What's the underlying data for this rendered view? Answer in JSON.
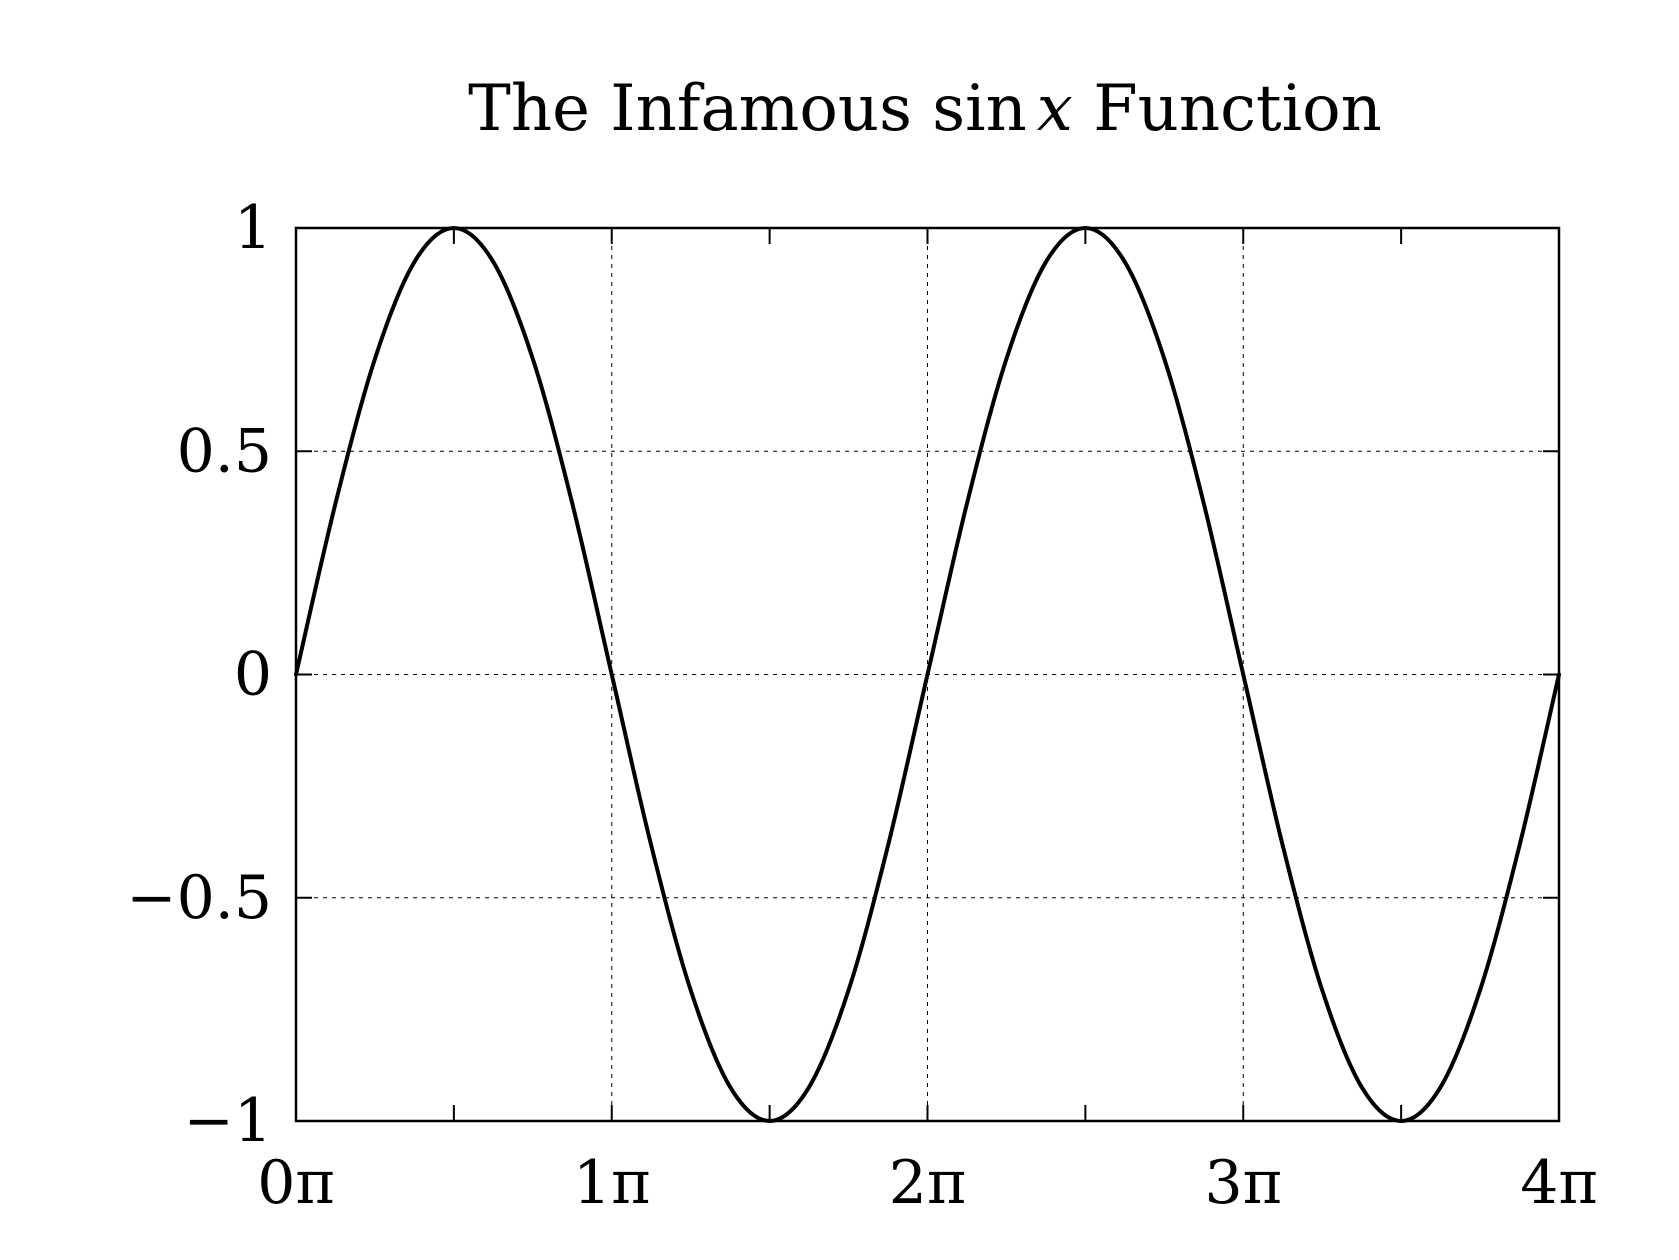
{
  "chart_data": {
    "type": "line",
    "title_parts": {
      "before": "The Infamous ",
      "func": "sin",
      "variable": "x",
      "after": " Function"
    },
    "xlabel": "",
    "ylabel": "",
    "xlim": [
      0,
      4
    ],
    "ylim": [
      -1,
      1
    ],
    "x_unit": "π",
    "grid": true,
    "grid_style": "dashed",
    "line_color": "#000000",
    "x_ticks": [
      {
        "value": 0,
        "label": "0π"
      },
      {
        "value": 1,
        "label": "1π"
      },
      {
        "value": 2,
        "label": "2π"
      },
      {
        "value": 3,
        "label": "3π"
      },
      {
        "value": 4,
        "label": "4π"
      }
    ],
    "x_minor_ticks": [
      0.5,
      1.5,
      2.5,
      3.5
    ],
    "y_ticks": [
      {
        "value": -1,
        "label": "−1"
      },
      {
        "value": -0.5,
        "label": "−0.5"
      },
      {
        "value": 0,
        "label": "0"
      },
      {
        "value": 0.5,
        "label": "0.5"
      },
      {
        "value": 1,
        "label": "1"
      }
    ],
    "series": [
      {
        "x": [
          0,
          0.125,
          0.25,
          0.375,
          0.5,
          0.625,
          0.75,
          0.875,
          1,
          1.125,
          1.25,
          1.375,
          1.5,
          1.625,
          1.75,
          1.875,
          2,
          2.125,
          2.25,
          2.375,
          2.5,
          2.625,
          2.75,
          2.875,
          3,
          3.125,
          3.25,
          3.375,
          3.5,
          3.625,
          3.75,
          3.875,
          4
        ],
        "y": [
          0,
          0.383,
          0.707,
          0.924,
          1,
          0.924,
          0.707,
          0.383,
          0,
          -0.383,
          -0.707,
          -0.924,
          -1,
          -0.924,
          -0.707,
          -0.383,
          0,
          0.383,
          0.707,
          0.924,
          1,
          0.924,
          0.707,
          0.383,
          0,
          -0.383,
          -0.707,
          -0.924,
          -1,
          -0.924,
          -0.707,
          -0.383,
          0
        ]
      }
    ]
  }
}
